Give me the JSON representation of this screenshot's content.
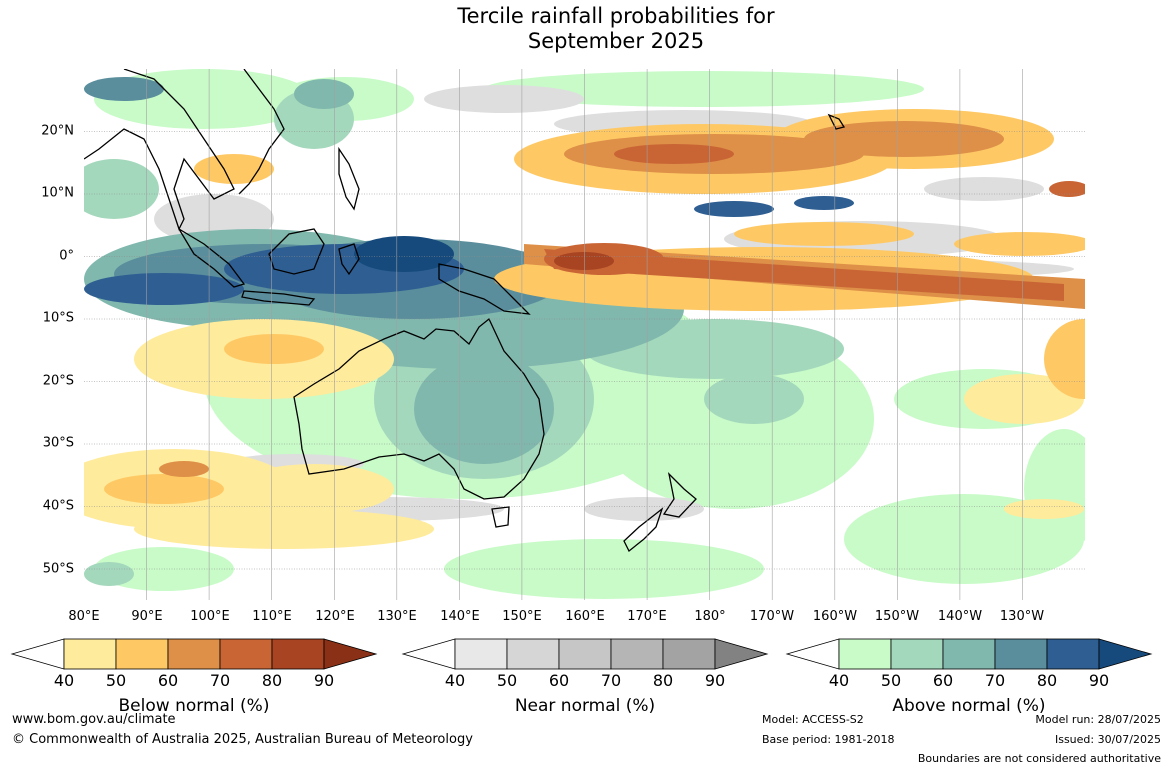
{
  "title": {
    "line1": "Tercile rainfall probabilities for",
    "line2": "September 2025"
  },
  "map": {
    "lat_labels": [
      "20°N",
      "10°N",
      "0°",
      "10°S",
      "20°S",
      "30°S",
      "40°S",
      "50°S"
    ],
    "lon_labels": [
      "80°E",
      "90°E",
      "100°E",
      "110°E",
      "120°E",
      "130°E",
      "140°E",
      "150°E",
      "160°E",
      "170°E",
      "180°",
      "170°W",
      "160°W",
      "150°W",
      "140°W",
      "130°W"
    ],
    "extent": {
      "lon_west": 80,
      "lon_east": 240,
      "lat_north": 30,
      "lat_south": -55
    }
  },
  "legends": {
    "below": {
      "title": "Below normal (%)",
      "ticks": [
        "40",
        "50",
        "60",
        "70",
        "80",
        "90"
      ],
      "colors": [
        "#ffffff",
        "#ffeb9c",
        "#fec965",
        "#de9048",
        "#c96535",
        "#a84422",
        "#8a3016"
      ]
    },
    "near": {
      "title": "Near normal (%)",
      "ticks": [
        "40",
        "50",
        "60",
        "70",
        "80",
        "90"
      ],
      "colors": [
        "#ffffff",
        "#e8e8e8",
        "#d6d6d6",
        "#c6c6c6",
        "#b5b5b5",
        "#a3a3a3",
        "#828282"
      ]
    },
    "above": {
      "title": "Above normal (%)",
      "ticks": [
        "40",
        "50",
        "60",
        "70",
        "80",
        "90"
      ],
      "colors": [
        "#ffffff",
        "#c8fbc8",
        "#a4d8bc",
        "#80b8ad",
        "#5a8e9c",
        "#2f5f92",
        "#164a7c"
      ]
    }
  },
  "footer": {
    "website": "www.bom.gov.au/climate",
    "copyright": "© Commonwealth of Australia 2025, Australian Bureau of Meteorology",
    "model": "Model: ACCESS-S2",
    "base_period": "Base period: 1981-2018",
    "model_run": "Model run: 28/07/2025",
    "issued": "Issued: 30/07/2025",
    "disclaimer": "Boundaries are not considered authoritative"
  }
}
